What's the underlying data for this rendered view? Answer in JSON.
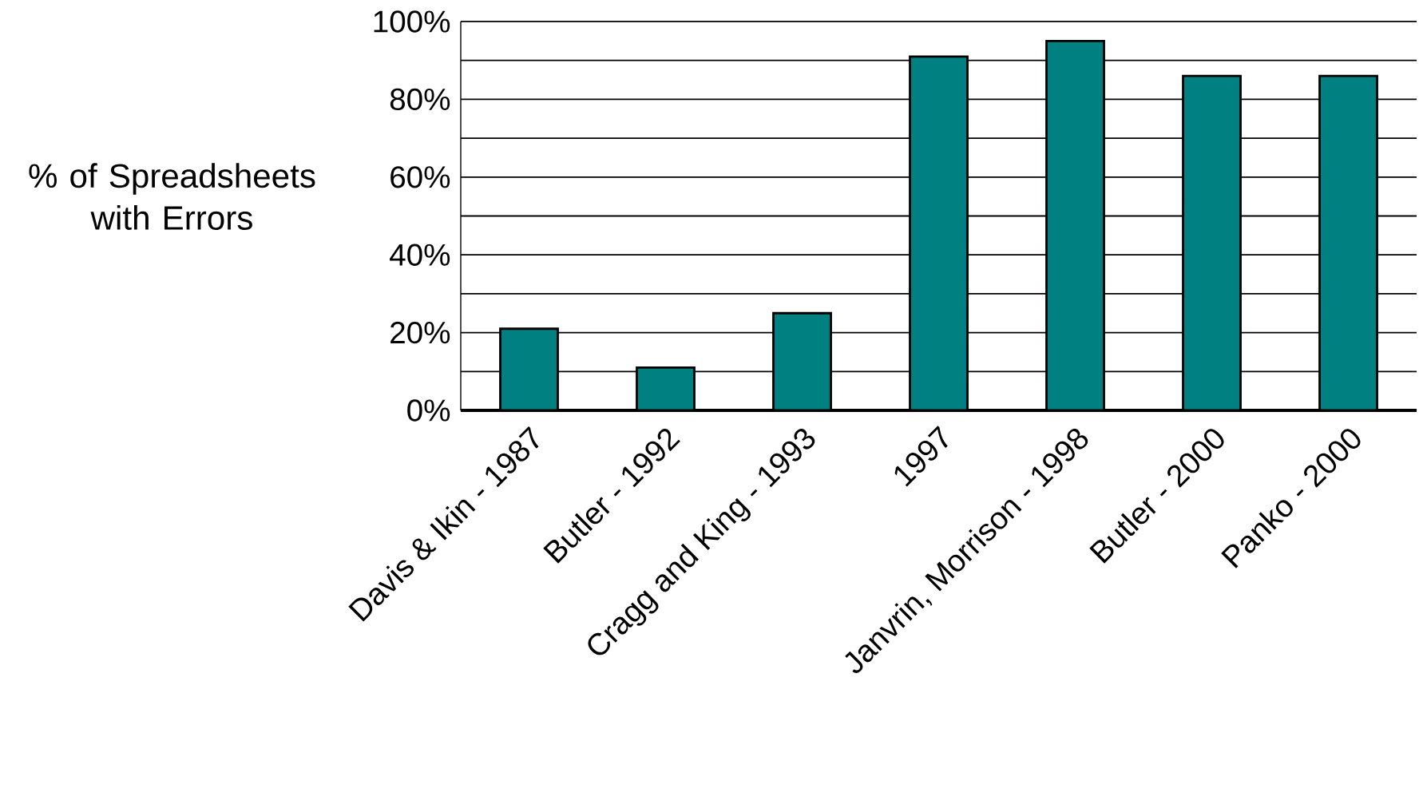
{
  "chart_data": {
    "type": "bar",
    "ylabel": "% of Spreadsheets with Errors",
    "categories": [
      "Davis & Ikin - 1987",
      "Butler - 1992",
      "Cragg and King - 1993",
      "1997",
      "Janvrin, Morrison - 1998",
      "Butler - 2000",
      "Panko - 2000"
    ],
    "values": [
      21,
      11,
      25,
      91,
      95,
      86,
      86
    ],
    "color": "#008080",
    "ylim": [
      0,
      100
    ],
    "yticks": [
      {
        "value": 0,
        "label": "0%"
      },
      {
        "value": 10,
        "label": null
      },
      {
        "value": 20,
        "label": "20%"
      },
      {
        "value": 30,
        "label": null
      },
      {
        "value": 40,
        "label": "40%"
      },
      {
        "value": 50,
        "label": null
      },
      {
        "value": 60,
        "label": "60%"
      },
      {
        "value": 70,
        "label": null
      },
      {
        "value": 80,
        "label": "80%"
      },
      {
        "value": 90,
        "label": null
      },
      {
        "value": 100,
        "label": "100%"
      }
    ],
    "grid": "y"
  }
}
